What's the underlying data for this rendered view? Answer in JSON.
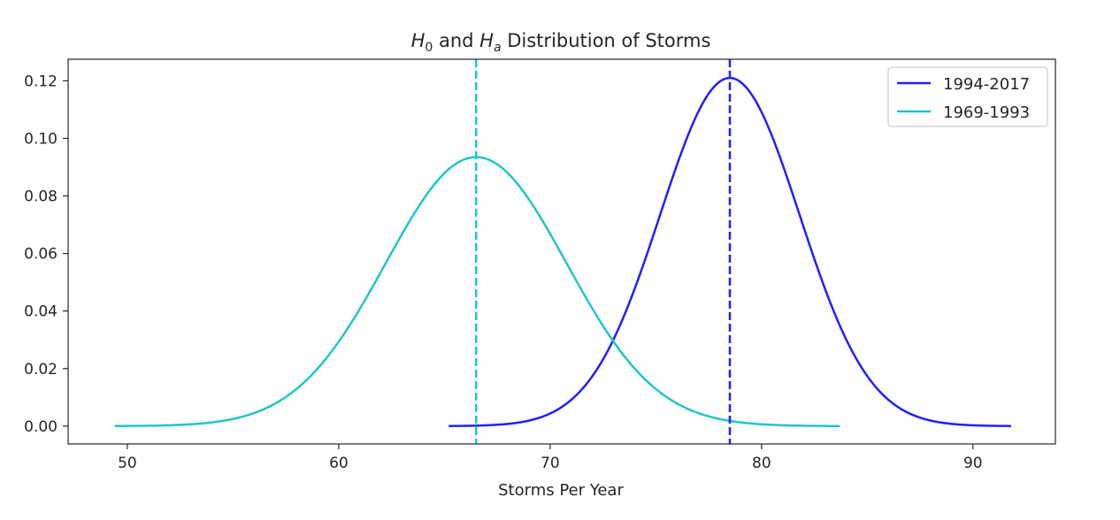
{
  "chart_data": {
    "type": "line",
    "title": {
      "h0_symbol": "H",
      "h0_sub": "0",
      "and_text": " and ",
      "ha_symbol": "H",
      "ha_sub": "a",
      "rest": " Distribution of Storms"
    },
    "xlabel": "Storms Per Year",
    "ylabel": "",
    "xlim": [
      47.2,
      93.9
    ],
    "ylim": [
      -0.0062,
      0.1275
    ],
    "x_ticks": [
      50,
      60,
      70,
      80,
      90
    ],
    "x_tick_labels": [
      "50",
      "60",
      "70",
      "80",
      "90"
    ],
    "y_ticks": [
      0.0,
      0.02,
      0.04,
      0.06,
      0.08,
      0.1,
      0.12
    ],
    "y_tick_labels": [
      "0.00",
      "0.02",
      "0.04",
      "0.06",
      "0.08",
      "0.10",
      "0.12"
    ],
    "grid": false,
    "legend_position": "top-right",
    "series": [
      {
        "name": "1994-2017",
        "color": "#2020ff",
        "distribution": "normal",
        "mean": 78.5,
        "std": 3.3,
        "peak": 0.121,
        "x_range": [
          65.2,
          91.8
        ]
      },
      {
        "name": "1969-1993",
        "color": "#20c5c8",
        "distribution": "normal",
        "mean": 66.5,
        "std": 4.27,
        "peak": 0.0935,
        "x_range": [
          49.4,
          83.7
        ]
      }
    ],
    "vertical_lines": [
      {
        "x": 66.5,
        "color": "#20c5c8",
        "style": "dashed"
      },
      {
        "x": 78.5,
        "color": "#2020ff",
        "style": "dashed"
      }
    ]
  }
}
